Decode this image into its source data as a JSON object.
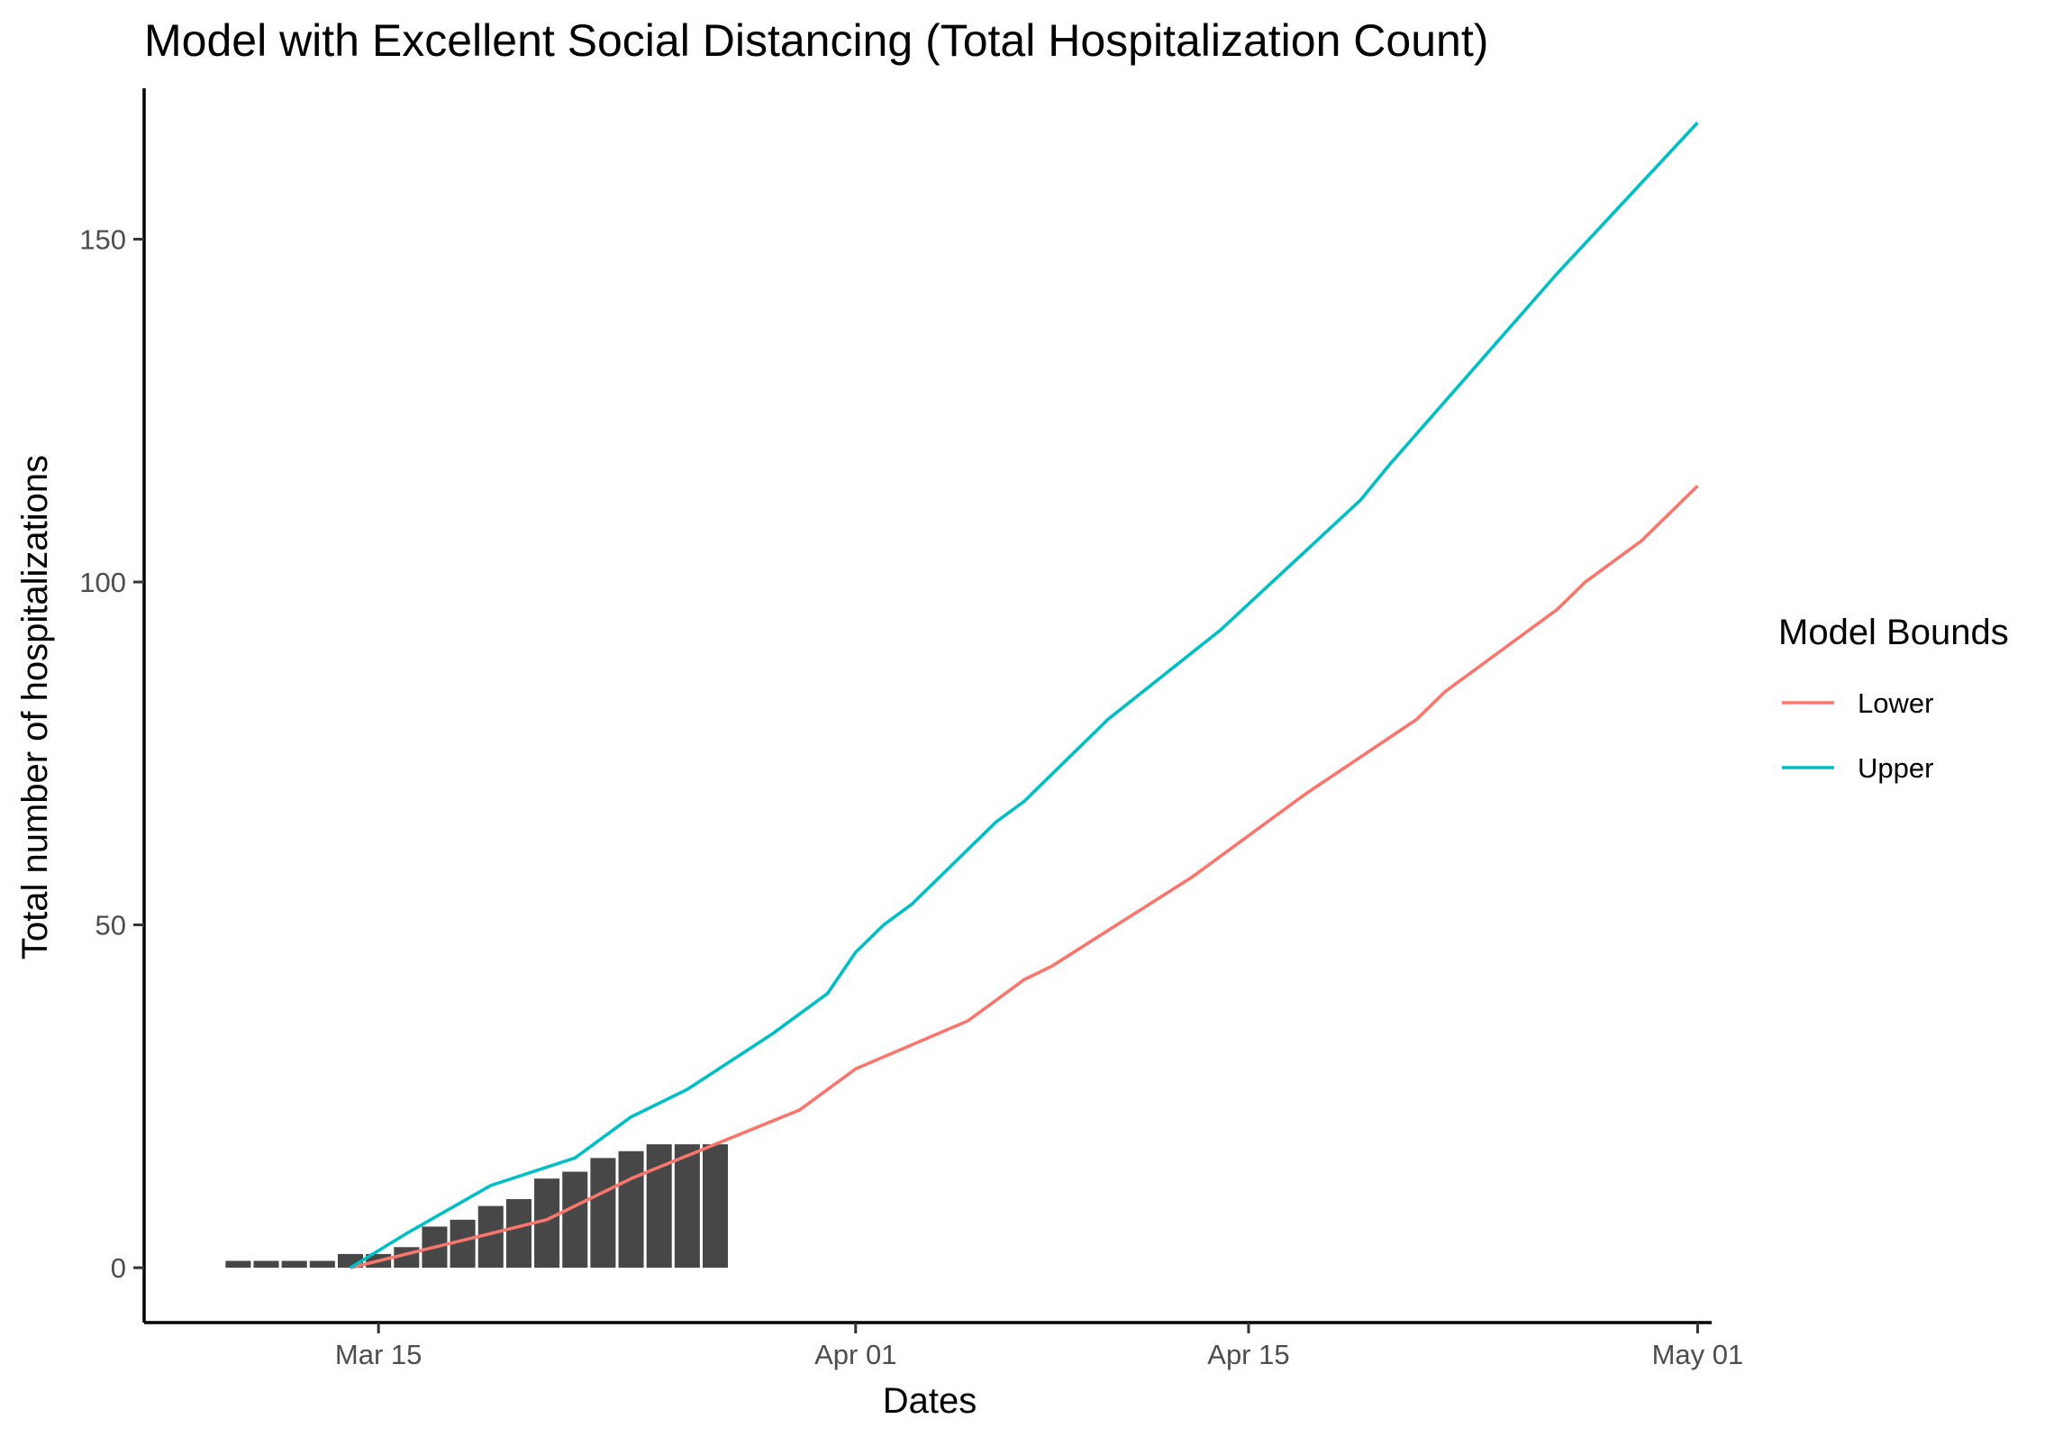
{
  "chart_data": {
    "type": "bar+line",
    "title": "Model with Excellent Social Distancing (Total Hospitalization Count)",
    "xlabel": "Dates",
    "ylabel": "Total number of hospitalizations",
    "x_ticks": [
      {
        "label": "Mar 15",
        "date": "2020-03-15"
      },
      {
        "label": "Apr 01",
        "date": "2020-04-01"
      },
      {
        "label": "Apr 15",
        "date": "2020-04-15"
      },
      {
        "label": "May 01",
        "date": "2020-05-01"
      }
    ],
    "y_ticks": [
      0,
      50,
      100,
      150
    ],
    "xlim": [
      "2020-03-07",
      "2020-05-01"
    ],
    "ylim": [
      -8,
      172
    ],
    "grid": false,
    "legend": {
      "title": "Model Bounds",
      "position": "right"
    },
    "bars": {
      "dates": [
        "2020-03-10",
        "2020-03-11",
        "2020-03-12",
        "2020-03-13",
        "2020-03-14",
        "2020-03-15",
        "2020-03-16",
        "2020-03-17",
        "2020-03-18",
        "2020-03-19",
        "2020-03-20",
        "2020-03-21",
        "2020-03-22",
        "2020-03-23",
        "2020-03-24",
        "2020-03-25",
        "2020-03-26",
        "2020-03-27"
      ],
      "values": [
        1,
        1,
        1,
        1,
        2,
        2,
        3,
        6,
        7,
        9,
        10,
        13,
        14,
        16,
        17,
        18,
        18,
        18
      ]
    },
    "series": [
      {
        "name": "Lower",
        "color": "#F8766D",
        "points": [
          [
            "2020-03-14",
            0
          ],
          [
            "2020-03-16",
            2
          ],
          [
            "2020-03-19",
            5
          ],
          [
            "2020-03-21",
            7
          ],
          [
            "2020-03-24",
            13
          ],
          [
            "2020-03-27",
            18
          ],
          [
            "2020-03-30",
            23
          ],
          [
            "2020-04-01",
            29
          ],
          [
            "2020-04-05",
            36
          ],
          [
            "2020-04-06",
            39
          ],
          [
            "2020-04-07",
            42
          ],
          [
            "2020-04-08",
            44
          ],
          [
            "2020-04-13",
            57
          ],
          [
            "2020-04-17",
            69
          ],
          [
            "2020-04-21",
            80
          ],
          [
            "2020-04-22",
            84
          ],
          [
            "2020-04-26",
            96
          ],
          [
            "2020-04-27",
            100
          ],
          [
            "2020-04-29",
            106
          ],
          [
            "2020-05-01",
            114
          ]
        ]
      },
      {
        "name": "Upper",
        "color": "#00BFC4",
        "points": [
          [
            "2020-03-14",
            0
          ],
          [
            "2020-03-16",
            5
          ],
          [
            "2020-03-19",
            12
          ],
          [
            "2020-03-22",
            16
          ],
          [
            "2020-03-24",
            22
          ],
          [
            "2020-03-26",
            26
          ],
          [
            "2020-03-29",
            34
          ],
          [
            "2020-03-31",
            40
          ],
          [
            "2020-04-01",
            46
          ],
          [
            "2020-04-02",
            50
          ],
          [
            "2020-04-03",
            53
          ],
          [
            "2020-04-06",
            65
          ],
          [
            "2020-04-07",
            68
          ],
          [
            "2020-04-10",
            80
          ],
          [
            "2020-04-14",
            93
          ],
          [
            "2020-04-19",
            112
          ],
          [
            "2020-04-20",
            117
          ],
          [
            "2020-04-26",
            145
          ],
          [
            "2020-05-01",
            167
          ]
        ]
      }
    ]
  }
}
